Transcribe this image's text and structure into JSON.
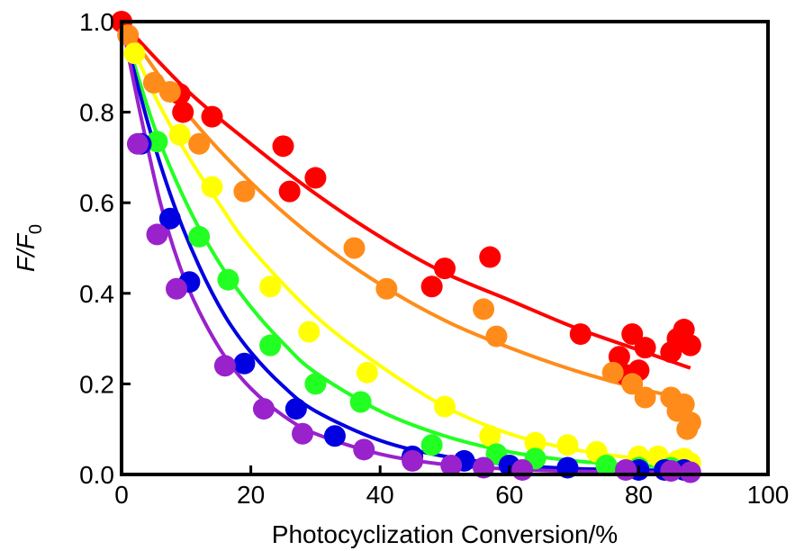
{
  "chart_data": {
    "type": "scatter",
    "title": "",
    "xlabel": "Photocyclization Conversion/%",
    "ylabel": {
      "base": "F/F",
      "subscript": "0"
    },
    "xlim": [
      0,
      100
    ],
    "ylim": [
      0,
      1.0
    ],
    "xticks": [
      0,
      20,
      40,
      60,
      80,
      100
    ],
    "xtick_labels": [
      "0",
      "20",
      "40",
      "60",
      "80",
      "100"
    ],
    "yticks": [
      0,
      0.2,
      0.4,
      0.6,
      0.8,
      1.0
    ],
    "ytick_labels": [
      "0.0",
      "0.2",
      "0.4",
      "0.6",
      "0.8",
      "1.0"
    ],
    "grid": false,
    "legend": "none",
    "series": [
      {
        "color": "#ff0000",
        "points": [
          [
            0,
            1.0
          ],
          [
            9,
            0.84
          ],
          [
            9.5,
            0.8
          ],
          [
            14,
            0.79
          ],
          [
            25,
            0.725
          ],
          [
            26,
            0.625
          ],
          [
            30,
            0.655
          ],
          [
            48,
            0.415
          ],
          [
            50,
            0.455
          ],
          [
            57,
            0.48
          ],
          [
            71,
            0.31
          ],
          [
            77,
            0.26
          ],
          [
            78,
            0.22
          ],
          [
            79,
            0.31
          ],
          [
            80,
            0.23
          ],
          [
            81,
            0.28
          ],
          [
            85,
            0.27
          ],
          [
            86,
            0.3
          ],
          [
            87,
            0.32
          ],
          [
            88,
            0.285
          ]
        ],
        "fit": [
          [
            0,
            1.0
          ],
          [
            10,
            0.85
          ],
          [
            20,
            0.73
          ],
          [
            30,
            0.62
          ],
          [
            40,
            0.525
          ],
          [
            50,
            0.445
          ],
          [
            60,
            0.385
          ],
          [
            70,
            0.325
          ],
          [
            80,
            0.275
          ],
          [
            88,
            0.235
          ]
        ]
      },
      {
        "color": "#ff8c1a",
        "points": [
          [
            1,
            0.97
          ],
          [
            5,
            0.865
          ],
          [
            7.5,
            0.845
          ],
          [
            12,
            0.73
          ],
          [
            19,
            0.625
          ],
          [
            36,
            0.5
          ],
          [
            41,
            0.41
          ],
          [
            56,
            0.365
          ],
          [
            58,
            0.305
          ],
          [
            76,
            0.225
          ],
          [
            79,
            0.2
          ],
          [
            81,
            0.17
          ],
          [
            85,
            0.17
          ],
          [
            86,
            0.14
          ],
          [
            87,
            0.155
          ],
          [
            87.5,
            0.1
          ],
          [
            88,
            0.115
          ]
        ],
        "fit": [
          [
            0,
            1.0
          ],
          [
            10,
            0.8
          ],
          [
            20,
            0.645
          ],
          [
            30,
            0.52
          ],
          [
            40,
            0.42
          ],
          [
            50,
            0.34
          ],
          [
            60,
            0.28
          ],
          [
            70,
            0.23
          ],
          [
            80,
            0.19
          ],
          [
            88,
            0.165
          ]
        ]
      },
      {
        "color": "#ffff00",
        "points": [
          [
            2,
            0.93
          ],
          [
            9,
            0.75
          ],
          [
            14,
            0.635
          ],
          [
            23,
            0.415
          ],
          [
            29,
            0.315
          ],
          [
            38,
            0.225
          ],
          [
            50,
            0.15
          ],
          [
            57,
            0.085
          ],
          [
            64,
            0.07
          ],
          [
            69,
            0.065
          ],
          [
            73.5,
            0.05
          ],
          [
            80,
            0.04
          ],
          [
            83,
            0.04
          ],
          [
            86,
            0.03
          ],
          [
            87,
            0.035
          ],
          [
            88,
            0.025
          ]
        ],
        "fit": [
          [
            0,
            1.0
          ],
          [
            5,
            0.84
          ],
          [
            10,
            0.71
          ],
          [
            15,
            0.6
          ],
          [
            20,
            0.5
          ],
          [
            30,
            0.35
          ],
          [
            40,
            0.24
          ],
          [
            50,
            0.15
          ],
          [
            60,
            0.09
          ],
          [
            70,
            0.055
          ],
          [
            80,
            0.035
          ],
          [
            88,
            0.025
          ]
        ]
      },
      {
        "color": "#22ff22",
        "points": [
          [
            5.5,
            0.735
          ],
          [
            12,
            0.525
          ],
          [
            16.5,
            0.43
          ],
          [
            23,
            0.285
          ],
          [
            30,
            0.2
          ],
          [
            37,
            0.16
          ],
          [
            48,
            0.065
          ],
          [
            58,
            0.045
          ],
          [
            64,
            0.035
          ],
          [
            75,
            0.02
          ],
          [
            80,
            0.015
          ],
          [
            85,
            0.015
          ],
          [
            87,
            0.01
          ]
        ],
        "fit": [
          [
            0,
            1.0
          ],
          [
            5,
            0.77
          ],
          [
            10,
            0.6
          ],
          [
            15,
            0.47
          ],
          [
            20,
            0.37
          ],
          [
            25,
            0.29
          ],
          [
            30,
            0.225
          ],
          [
            40,
            0.14
          ],
          [
            50,
            0.085
          ],
          [
            60,
            0.05
          ],
          [
            70,
            0.03
          ],
          [
            80,
            0.02
          ],
          [
            88,
            0.015
          ]
        ]
      },
      {
        "color": "#0000e0",
        "points": [
          [
            3,
            0.73
          ],
          [
            7.5,
            0.565
          ],
          [
            10.5,
            0.425
          ],
          [
            19,
            0.245
          ],
          [
            27,
            0.145
          ],
          [
            33,
            0.085
          ],
          [
            45,
            0.04
          ],
          [
            53,
            0.03
          ],
          [
            60,
            0.02
          ],
          [
            69,
            0.015
          ],
          [
            80,
            0.01
          ],
          [
            84,
            0.01
          ],
          [
            87,
            0.01
          ]
        ],
        "fit": [
          [
            0,
            1.0
          ],
          [
            4,
            0.78
          ],
          [
            8,
            0.6
          ],
          [
            12,
            0.46
          ],
          [
            16,
            0.35
          ],
          [
            20,
            0.27
          ],
          [
            25,
            0.195
          ],
          [
            30,
            0.14
          ],
          [
            40,
            0.075
          ],
          [
            50,
            0.04
          ],
          [
            60,
            0.022
          ],
          [
            70,
            0.013
          ],
          [
            80,
            0.01
          ],
          [
            88,
            0.008
          ]
        ]
      },
      {
        "color": "#9922cc",
        "points": [
          [
            2.5,
            0.73
          ],
          [
            5.5,
            0.53
          ],
          [
            8.5,
            0.41
          ],
          [
            16,
            0.24
          ],
          [
            22,
            0.145
          ],
          [
            28,
            0.09
          ],
          [
            37.5,
            0.055
          ],
          [
            45,
            0.03
          ],
          [
            51,
            0.02
          ],
          [
            56,
            0.015
          ],
          [
            62,
            0.01
          ],
          [
            78,
            0.01
          ],
          [
            85,
            0.008
          ],
          [
            88,
            0.005
          ]
        ],
        "fit": [
          [
            0,
            1.0
          ],
          [
            3,
            0.79
          ],
          [
            6,
            0.6
          ],
          [
            9,
            0.46
          ],
          [
            12,
            0.36
          ],
          [
            16,
            0.26
          ],
          [
            20,
            0.19
          ],
          [
            25,
            0.13
          ],
          [
            30,
            0.09
          ],
          [
            40,
            0.045
          ],
          [
            50,
            0.022
          ],
          [
            60,
            0.012
          ],
          [
            70,
            0.007
          ],
          [
            88,
            0.004
          ]
        ]
      }
    ]
  }
}
